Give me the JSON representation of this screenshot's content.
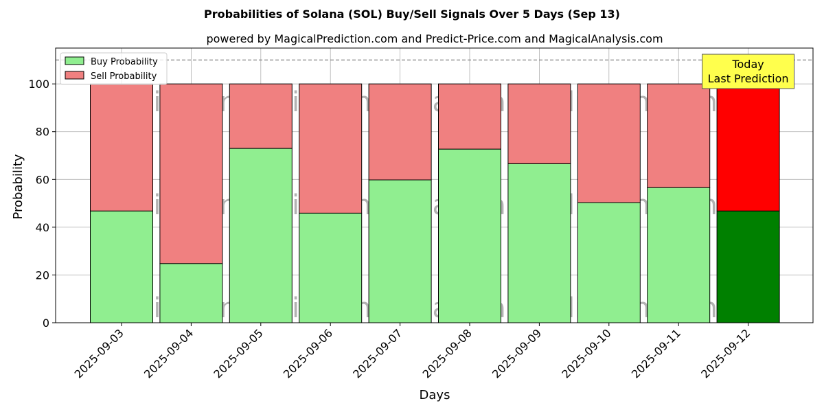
{
  "chart_data": {
    "type": "bar",
    "stacked": true,
    "title": "Probabilities of Solana (SOL) Buy/Sell Signals Over 5 Days (Sep 13)",
    "subtitle": "powered by MagicalPrediction.com and Predict-Price.com and MagicalAnalysis.com",
    "xlabel": "Days",
    "ylabel": "Probability",
    "ylim": [
      0,
      115
    ],
    "yticks": [
      0,
      20,
      40,
      60,
      80,
      100
    ],
    "grid": true,
    "legend_position": "top-left",
    "reference_line": 110,
    "categories": [
      "2025-09-03",
      "2025-09-04",
      "2025-09-05",
      "2025-09-06",
      "2025-09-07",
      "2025-09-08",
      "2025-09-09",
      "2025-09-10",
      "2025-09-11",
      "2025-09-12"
    ],
    "series": [
      {
        "name": "Buy Probability",
        "values": [
          46.8,
          24.8,
          73.0,
          45.9,
          59.8,
          72.7,
          66.6,
          50.3,
          56.6,
          46.8
        ],
        "color": "#90ee90",
        "highlight_color": "#008000"
      },
      {
        "name": "Sell Probability",
        "values": [
          53.2,
          75.2,
          27.0,
          54.1,
          40.2,
          27.3,
          33.4,
          49.7,
          43.4,
          53.2
        ],
        "color": "#f08080",
        "highlight_color": "#ff0000"
      }
    ],
    "highlight_index": 9,
    "annotation": {
      "lines": [
        "Today",
        "Last Prediction"
      ],
      "color": "#ffff4d"
    },
    "watermarks": [
      "MagicalAnalysis.com",
      "MagicalPrediction.com"
    ]
  }
}
